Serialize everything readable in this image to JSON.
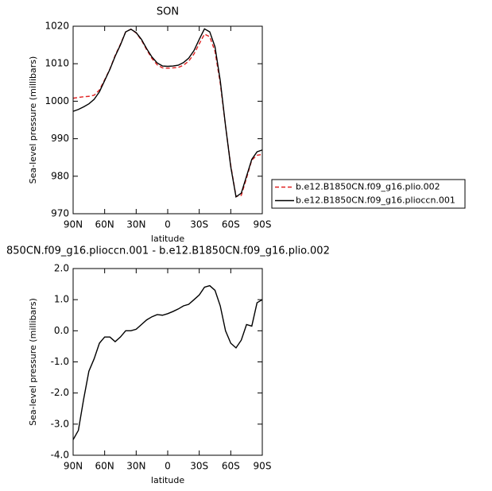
{
  "chart_data": [
    {
      "type": "line",
      "title": "SON",
      "xlabel": "latitude",
      "ylabel": "Sea-level pressure (millibars)",
      "x": [
        90,
        85,
        80,
        75,
        70,
        65,
        60,
        55,
        50,
        45,
        40,
        35,
        30,
        25,
        20,
        15,
        10,
        5,
        0,
        -5,
        -10,
        -15,
        -20,
        -25,
        -30,
        -35,
        -40,
        -45,
        -50,
        -55,
        -60,
        -65,
        -70,
        -75,
        -80,
        -85,
        -90
      ],
      "series": [
        {
          "name": "b.e12.B1850CN.f09_g16.plio.002",
          "color": "#e02020",
          "linestyle": "dashed",
          "values": [
            1000.8,
            1001,
            1001.2,
            1001.3,
            1001.6,
            1003,
            1005.7,
            1008.6,
            1012.2,
            1015.2,
            1018.5,
            1019.2,
            1018.2,
            1016.3,
            1013.7,
            1011.4,
            1009.7,
            1008.9,
            1008.8,
            1008.9,
            1009,
            1009.6,
            1010.7,
            1012.6,
            1015.3,
            1017.9,
            1017.2,
            1013.3,
            1004.8,
            993.5,
            982.9,
            974.6,
            974.9,
            979.5,
            984.3,
            985.6,
            985.8
          ]
        },
        {
          "name": "b.e12.B1850CN.f09_g16.plioccn.001",
          "color": "#000000",
          "linestyle": "solid",
          "values": [
            997.3,
            997.8,
            998.5,
            999.3,
            1000.5,
            1002.5,
            1005.5,
            1008.5,
            1012,
            1015,
            1018.5,
            1019.2,
            1018.3,
            1016.5,
            1014,
            1011.8,
            1010.2,
            1009.4,
            1009.3,
            1009.4,
            1009.6,
            1010.3,
            1011.5,
            1013.5,
            1016.5,
            1019.3,
            1018.5,
            1014.5,
            1005.5,
            993.5,
            982.5,
            974.5,
            975.5,
            980,
            984.5,
            986.5,
            987
          ]
        }
      ],
      "xlim": [
        90,
        -90
      ],
      "xticks": [
        {
          "value": 90,
          "label": "90N"
        },
        {
          "value": 60,
          "label": "60N"
        },
        {
          "value": 30,
          "label": "30N"
        },
        0,
        {
          "value": -30,
          "label": "30S"
        },
        {
          "value": -60,
          "label": "60S"
        },
        {
          "value": -90,
          "label": "90S"
        }
      ],
      "ylim": [
        970,
        1020
      ],
      "yticks": [
        970,
        980,
        990,
        1000,
        1010,
        1020
      ],
      "legend": "right"
    },
    {
      "type": "line",
      "title": "850CN.f09_g16.plioccn.001 - b.e12.B1850CN.f09_g16.plio.002",
      "xlabel": "latitude",
      "ylabel": "Sea-level pressure (millibars)",
      "x": [
        90,
        85,
        80,
        75,
        70,
        65,
        60,
        55,
        50,
        45,
        40,
        35,
        30,
        25,
        20,
        15,
        10,
        5,
        0,
        -5,
        -10,
        -15,
        -20,
        -25,
        -30,
        -35,
        -40,
        -45,
        -50,
        -55,
        -60,
        -65,
        -70,
        -75,
        -80,
        -85,
        -90
      ],
      "series": [
        {
          "color": "#000000",
          "linestyle": "solid",
          "values": [
            -3.5,
            -3.2,
            -2.2,
            -1.3,
            -0.9,
            -0.4,
            -0.2,
            -0.2,
            -0.35,
            -0.2,
            0,
            0,
            0.05,
            0.2,
            0.35,
            0.45,
            0.52,
            0.5,
            0.55,
            0.62,
            0.7,
            0.8,
            0.85,
            1.0,
            1.15,
            1.4,
            1.45,
            1.3,
            0.8,
            0.0,
            -0.4,
            -0.55,
            -0.3,
            0.2,
            0.15,
            0.9,
            1.0
          ]
        }
      ],
      "xlim": [
        90,
        -90
      ],
      "xticks": [
        {
          "value": 90,
          "label": "90N"
        },
        {
          "value": 60,
          "label": "60N"
        },
        {
          "value": 30,
          "label": "30N"
        },
        0,
        {
          "value": -30,
          "label": "30S"
        },
        {
          "value": -60,
          "label": "60S"
        },
        {
          "value": -90,
          "label": "90S"
        }
      ],
      "ylim": [
        -4,
        2
      ],
      "yticks": [
        {
          "value": -4,
          "label": "-4.0"
        },
        {
          "value": -3,
          "label": "-3.0"
        },
        {
          "value": -2,
          "label": "-2.0"
        },
        {
          "value": -1,
          "label": "-1.0"
        },
        {
          "value": 0,
          "label": "0.0"
        },
        {
          "value": 1,
          "label": "1.0"
        },
        {
          "value": 2,
          "label": "2.0"
        }
      ]
    }
  ]
}
